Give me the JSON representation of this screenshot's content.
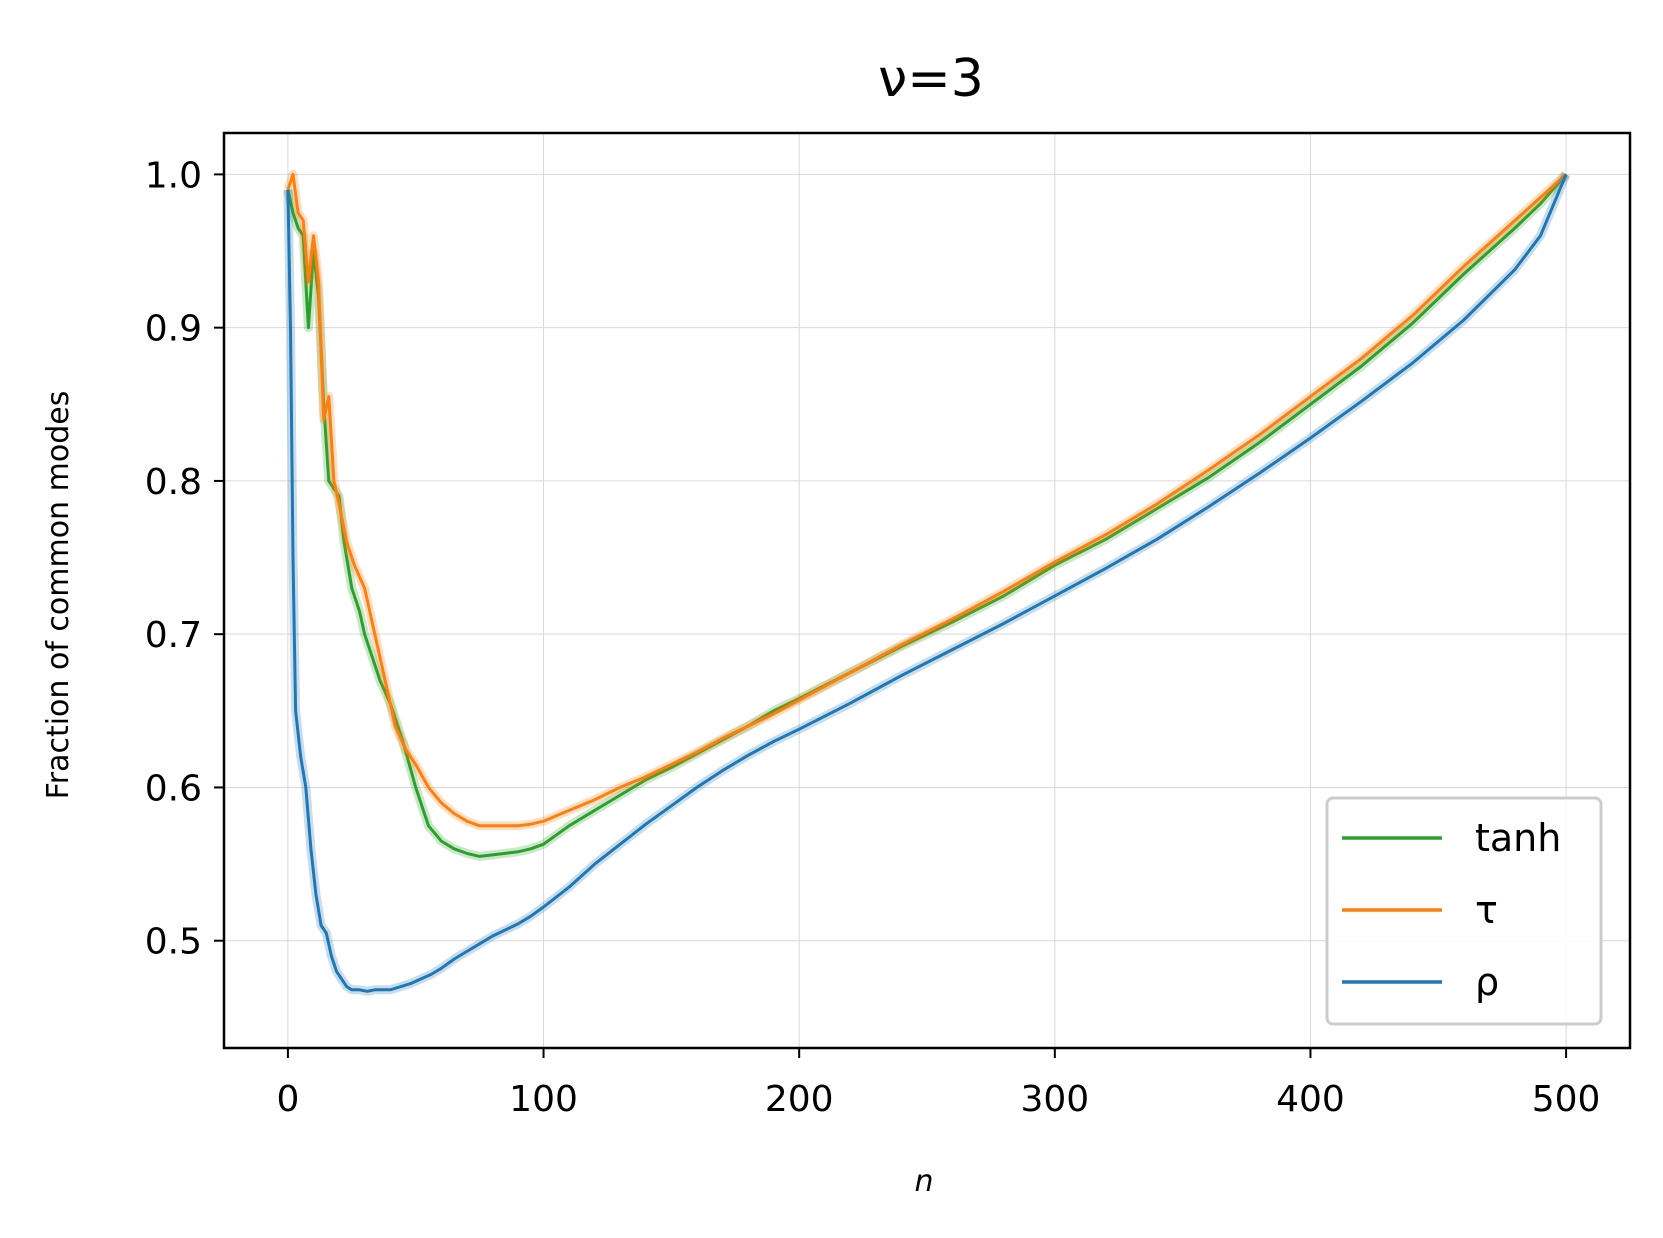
{
  "chart_data": {
    "type": "line",
    "title": "ν=3",
    "xlabel": "n",
    "ylabel": "Fraction of common modes",
    "xlim": [
      -25,
      525
    ],
    "ylim": [
      0.43,
      1.027
    ],
    "xticks": [
      0,
      100,
      200,
      300,
      400,
      500
    ],
    "xtick_labels": [
      "0",
      "100",
      "200",
      "300",
      "400",
      "500"
    ],
    "yticks": [
      0.5,
      0.6,
      0.7,
      0.8,
      0.9,
      1.0
    ],
    "ytick_labels": [
      "0.5",
      "0.6",
      "0.7",
      "0.8",
      "0.9",
      "1.0"
    ],
    "grid": true,
    "legend_position": "lower-right",
    "series": [
      {
        "name": "tanh",
        "color": "#2ca02c",
        "x": [
          0,
          2,
          4,
          6,
          8,
          10,
          12,
          14,
          16,
          18,
          20,
          22,
          25,
          28,
          30,
          33,
          36,
          40,
          45,
          50,
          55,
          60,
          65,
          70,
          75,
          80,
          85,
          90,
          95,
          100,
          110,
          120,
          130,
          140,
          150,
          160,
          170,
          180,
          190,
          200,
          220,
          240,
          260,
          280,
          300,
          320,
          340,
          360,
          380,
          400,
          420,
          440,
          460,
          480,
          490,
          500
        ],
        "y": [
          0.99,
          0.975,
          0.965,
          0.96,
          0.9,
          0.95,
          0.92,
          0.85,
          0.8,
          0.795,
          0.79,
          0.76,
          0.73,
          0.715,
          0.7,
          0.685,
          0.67,
          0.655,
          0.63,
          0.6,
          0.575,
          0.565,
          0.56,
          0.557,
          0.555,
          0.556,
          0.557,
          0.558,
          0.56,
          0.563,
          0.575,
          0.585,
          0.595,
          0.605,
          0.613,
          0.622,
          0.631,
          0.64,
          0.65,
          0.658,
          0.675,
          0.692,
          0.708,
          0.725,
          0.745,
          0.762,
          0.782,
          0.802,
          0.825,
          0.85,
          0.875,
          0.903,
          0.935,
          0.965,
          0.981,
          1.0
        ]
      },
      {
        "name": "τ",
        "color": "#ff7f0e",
        "x": [
          0,
          2,
          4,
          6,
          8,
          10,
          12,
          14,
          16,
          18,
          20,
          23,
          26,
          30,
          34,
          38,
          42,
          46,
          50,
          55,
          60,
          65,
          70,
          75,
          80,
          85,
          90,
          95,
          100,
          110,
          120,
          130,
          140,
          150,
          160,
          170,
          180,
          190,
          200,
          220,
          240,
          260,
          280,
          300,
          320,
          340,
          360,
          380,
          400,
          420,
          440,
          460,
          480,
          490,
          500
        ],
        "y": [
          0.99,
          1.0,
          0.975,
          0.97,
          0.93,
          0.96,
          0.93,
          0.84,
          0.855,
          0.8,
          0.785,
          0.76,
          0.745,
          0.73,
          0.7,
          0.67,
          0.64,
          0.625,
          0.615,
          0.6,
          0.59,
          0.583,
          0.578,
          0.575,
          0.575,
          0.575,
          0.575,
          0.576,
          0.578,
          0.585,
          0.592,
          0.6,
          0.607,
          0.615,
          0.623,
          0.632,
          0.64,
          0.648,
          0.657,
          0.675,
          0.693,
          0.71,
          0.728,
          0.747,
          0.765,
          0.785,
          0.807,
          0.83,
          0.855,
          0.88,
          0.908,
          0.94,
          0.97,
          0.985,
          1.0
        ]
      },
      {
        "name": "ρ",
        "color": "#1f77b4",
        "x": [
          0,
          1,
          2,
          3,
          5,
          7,
          9,
          11,
          13,
          15,
          17,
          19,
          21,
          23,
          25,
          28,
          31,
          34,
          37,
          40,
          44,
          48,
          52,
          56,
          60,
          65,
          70,
          75,
          80,
          85,
          90,
          95,
          100,
          110,
          120,
          130,
          140,
          150,
          160,
          170,
          180,
          190,
          200,
          220,
          240,
          260,
          280,
          300,
          320,
          340,
          360,
          380,
          400,
          420,
          440,
          460,
          480,
          490,
          500
        ],
        "y": [
          0.99,
          0.9,
          0.75,
          0.65,
          0.62,
          0.6,
          0.56,
          0.53,
          0.51,
          0.505,
          0.49,
          0.48,
          0.475,
          0.47,
          0.468,
          0.468,
          0.467,
          0.468,
          0.468,
          0.468,
          0.47,
          0.472,
          0.475,
          0.478,
          0.482,
          0.488,
          0.493,
          0.498,
          0.503,
          0.507,
          0.511,
          0.516,
          0.522,
          0.535,
          0.55,
          0.563,
          0.576,
          0.588,
          0.6,
          0.611,
          0.621,
          0.63,
          0.638,
          0.655,
          0.673,
          0.69,
          0.707,
          0.725,
          0.743,
          0.762,
          0.783,
          0.805,
          0.828,
          0.852,
          0.877,
          0.905,
          0.938,
          0.96,
          1.0
        ]
      }
    ]
  }
}
